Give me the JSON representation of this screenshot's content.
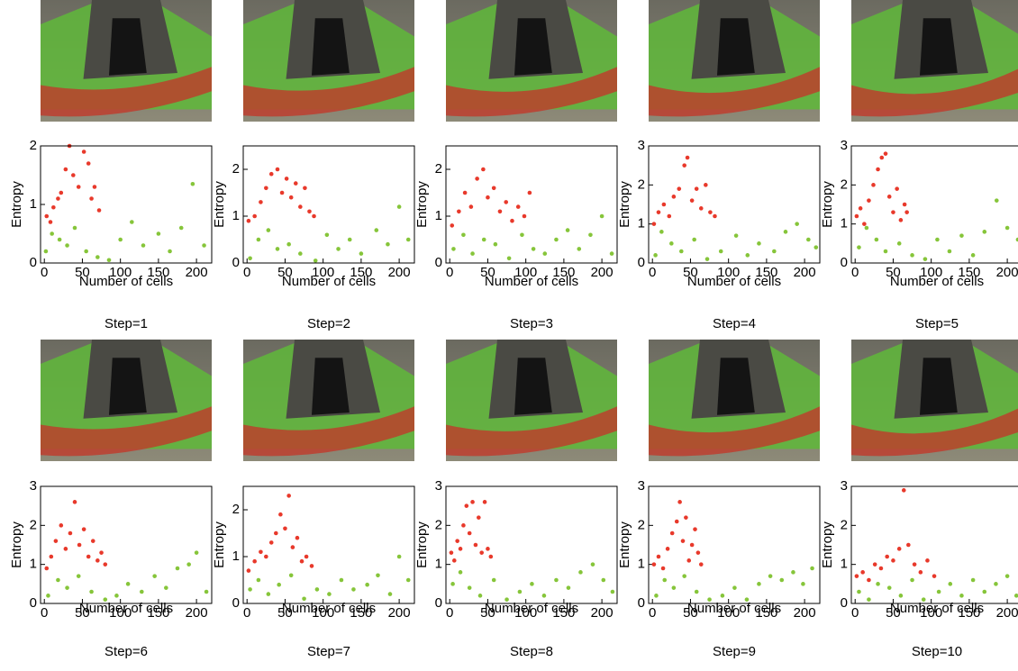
{
  "chart_data": [
    {
      "type": "scatter",
      "caption": "Step=1",
      "xlabel": "Number of cells",
      "ylabel": "Entropy",
      "xlim": [
        -5,
        220
      ],
      "xticks": [
        0,
        50,
        100,
        150,
        200
      ],
      "ylim": [
        0,
        2
      ],
      "yticks": [
        0,
        1,
        2
      ],
      "series": [
        {
          "color": "#e8392b",
          "x": [
            3,
            8,
            12,
            18,
            22,
            28,
            33,
            38,
            45,
            52,
            58,
            62,
            66,
            72
          ],
          "y": [
            0.8,
            0.7,
            0.95,
            1.1,
            1.2,
            1.6,
            2.0,
            1.5,
            1.3,
            1.9,
            1.7,
            1.1,
            1.3,
            0.9
          ]
        },
        {
          "color": "#86c53a",
          "x": [
            2,
            10,
            20,
            30,
            40,
            55,
            70,
            85,
            100,
            115,
            130,
            150,
            165,
            180,
            195,
            210
          ],
          "y": [
            0.2,
            0.5,
            0.4,
            0.3,
            0.6,
            0.2,
            0.1,
            0.05,
            0.4,
            0.7,
            0.3,
            0.5,
            0.2,
            0.6,
            1.35,
            0.3
          ]
        }
      ]
    },
    {
      "type": "scatter",
      "caption": "Step=2",
      "xlabel": "Number of cells",
      "ylabel": "Entropy",
      "xlim": [
        -5,
        220
      ],
      "xticks": [
        0,
        50,
        100,
        150,
        200
      ],
      "ylim": [
        0,
        2.5
      ],
      "yticks": [
        0,
        1,
        2
      ],
      "series": [
        {
          "color": "#e8392b",
          "x": [
            2,
            10,
            18,
            25,
            32,
            40,
            46,
            52,
            58,
            64,
            70,
            76,
            82,
            88
          ],
          "y": [
            0.9,
            1.0,
            1.3,
            1.6,
            1.9,
            2.0,
            1.5,
            1.8,
            1.4,
            1.7,
            1.2,
            1.6,
            1.1,
            1.0
          ]
        },
        {
          "color": "#86c53a",
          "x": [
            4,
            15,
            28,
            40,
            55,
            70,
            90,
            105,
            120,
            135,
            150,
            170,
            185,
            200,
            212
          ],
          "y": [
            0.1,
            0.5,
            0.7,
            0.3,
            0.4,
            0.2,
            0.05,
            0.6,
            0.3,
            0.5,
            0.2,
            0.7,
            0.4,
            1.2,
            0.5
          ]
        }
      ]
    },
    {
      "type": "scatter",
      "caption": "Step=3",
      "xlabel": "Number of cells",
      "ylabel": "Entropy",
      "xlim": [
        -5,
        220
      ],
      "xticks": [
        0,
        50,
        100,
        150,
        200
      ],
      "ylim": [
        0,
        2.5
      ],
      "yticks": [
        0,
        1,
        2
      ],
      "series": [
        {
          "color": "#e8392b",
          "x": [
            3,
            12,
            20,
            28,
            36,
            44,
            50,
            58,
            66,
            74,
            82,
            90,
            98,
            105
          ],
          "y": [
            0.8,
            1.1,
            1.5,
            1.2,
            1.8,
            2.0,
            1.4,
            1.6,
            1.1,
            1.3,
            0.9,
            1.2,
            1.0,
            1.5
          ]
        },
        {
          "color": "#86c53a",
          "x": [
            5,
            18,
            30,
            45,
            60,
            78,
            95,
            110,
            125,
            140,
            155,
            170,
            185,
            200,
            213
          ],
          "y": [
            0.3,
            0.6,
            0.2,
            0.5,
            0.4,
            0.1,
            0.6,
            0.3,
            0.2,
            0.5,
            0.7,
            0.3,
            0.6,
            1.0,
            0.2
          ]
        }
      ]
    },
    {
      "type": "scatter",
      "caption": "Step=4",
      "xlabel": "Number of cells",
      "ylabel": "Entropy",
      "xlim": [
        -5,
        220
      ],
      "xticks": [
        0,
        50,
        100,
        150,
        200
      ],
      "ylim": [
        0,
        3
      ],
      "yticks": [
        0,
        1,
        2,
        3
      ],
      "series": [
        {
          "color": "#e8392b",
          "x": [
            2,
            8,
            15,
            22,
            28,
            35,
            42,
            46,
            52,
            58,
            64,
            70,
            76,
            82
          ],
          "y": [
            1.0,
            1.3,
            1.5,
            1.2,
            1.7,
            1.9,
            2.5,
            2.7,
            1.6,
            1.9,
            1.4,
            2.0,
            1.3,
            1.2
          ]
        },
        {
          "color": "#86c53a",
          "x": [
            4,
            12,
            25,
            38,
            55,
            72,
            90,
            110,
            125,
            140,
            160,
            175,
            190,
            205,
            215
          ],
          "y": [
            0.2,
            0.8,
            0.5,
            0.3,
            0.6,
            0.1,
            0.3,
            0.7,
            0.2,
            0.5,
            0.3,
            0.8,
            1.0,
            0.6,
            0.4
          ]
        }
      ]
    },
    {
      "type": "scatter",
      "caption": "Step=5",
      "xlabel": "Number of cells",
      "ylabel": "Entropy",
      "xlim": [
        -5,
        220
      ],
      "xticks": [
        0,
        50,
        100,
        150,
        200
      ],
      "ylim": [
        0,
        3
      ],
      "yticks": [
        0,
        1,
        2,
        3
      ],
      "series": [
        {
          "color": "#e8392b",
          "x": [
            2,
            7,
            12,
            18,
            24,
            30,
            35,
            40,
            45,
            50,
            55,
            60,
            65,
            68
          ],
          "y": [
            1.2,
            1.4,
            1.0,
            1.6,
            2.0,
            2.4,
            2.7,
            2.8,
            1.7,
            1.3,
            1.9,
            1.1,
            1.5,
            1.3
          ]
        },
        {
          "color": "#86c53a",
          "x": [
            5,
            15,
            28,
            40,
            58,
            75,
            92,
            108,
            124,
            140,
            155,
            170,
            186,
            200,
            214
          ],
          "y": [
            0.4,
            0.9,
            0.6,
            0.3,
            0.5,
            0.2,
            0.1,
            0.6,
            0.3,
            0.7,
            0.2,
            0.8,
            1.6,
            0.9,
            0.6
          ]
        }
      ]
    },
    {
      "type": "scatter",
      "caption": "Step=6",
      "xlabel": "Number of cells",
      "ylabel": "Entropy",
      "xlim": [
        -5,
        220
      ],
      "xticks": [
        0,
        50,
        100,
        150,
        200
      ],
      "ylim": [
        0,
        3
      ],
      "yticks": [
        0,
        1,
        2,
        3
      ],
      "series": [
        {
          "color": "#e8392b",
          "x": [
            3,
            9,
            15,
            22,
            28,
            34,
            40,
            46,
            52,
            58,
            64,
            70,
            75,
            80
          ],
          "y": [
            0.9,
            1.2,
            1.6,
            2.0,
            1.4,
            1.8,
            2.6,
            1.5,
            1.9,
            1.2,
            1.6,
            1.1,
            1.3,
            1.0
          ]
        },
        {
          "color": "#86c53a",
          "x": [
            5,
            18,
            30,
            45,
            62,
            80,
            95,
            110,
            128,
            145,
            160,
            175,
            190,
            200,
            213
          ],
          "y": [
            0.2,
            0.6,
            0.4,
            0.7,
            0.3,
            0.1,
            0.2,
            0.5,
            0.3,
            0.7,
            0.4,
            0.9,
            1.0,
            1.3,
            0.3
          ]
        }
      ]
    },
    {
      "type": "scatter",
      "caption": "Step=7",
      "xlabel": "Number of cells",
      "ylabel": "Entropy",
      "xlim": [
        -5,
        220
      ],
      "xticks": [
        0,
        50,
        100,
        150,
        200
      ],
      "ylim": [
        0,
        2.5
      ],
      "yticks": [
        0,
        1,
        2
      ],
      "series": [
        {
          "color": "#e8392b",
          "x": [
            2,
            10,
            18,
            25,
            32,
            38,
            44,
            50,
            55,
            60,
            66,
            72,
            78,
            85
          ],
          "y": [
            0.7,
            0.9,
            1.1,
            1.0,
            1.3,
            1.5,
            1.9,
            1.6,
            2.3,
            1.2,
            1.4,
            0.9,
            1.0,
            0.8
          ]
        },
        {
          "color": "#86c53a",
          "x": [
            4,
            15,
            28,
            42,
            58,
            75,
            92,
            108,
            124,
            140,
            158,
            172,
            188,
            200,
            212
          ],
          "y": [
            0.3,
            0.5,
            0.2,
            0.4,
            0.6,
            0.1,
            0.3,
            0.2,
            0.5,
            0.3,
            0.4,
            0.6,
            0.2,
            1.0,
            0.5
          ]
        }
      ]
    },
    {
      "type": "scatter",
      "caption": "Step=8",
      "xlabel": "Number of cells",
      "ylabel": "Entropy",
      "xlim": [
        -5,
        220
      ],
      "xticks": [
        0,
        50,
        100,
        150,
        200
      ],
      "ylim": [
        0,
        3
      ],
      "yticks": [
        0,
        1,
        2,
        3
      ],
      "series": [
        {
          "color": "#e8392b",
          "x": [
            2,
            6,
            10,
            14,
            18,
            22,
            26,
            30,
            34,
            38,
            42,
            46,
            50,
            54
          ],
          "y": [
            1.3,
            1.1,
            1.6,
            1.4,
            2.0,
            2.5,
            1.8,
            2.6,
            1.5,
            2.2,
            1.3,
            2.6,
            1.4,
            1.2
          ]
        },
        {
          "color": "#86c53a",
          "x": [
            4,
            14,
            26,
            40,
            58,
            75,
            92,
            108,
            124,
            140,
            156,
            172,
            188,
            202,
            214
          ],
          "y": [
            0.5,
            0.8,
            0.4,
            0.2,
            0.6,
            0.1,
            0.3,
            0.5,
            0.2,
            0.6,
            0.4,
            0.8,
            1.0,
            0.6,
            0.3
          ]
        }
      ]
    },
    {
      "type": "scatter",
      "caption": "Step=9",
      "xlabel": "Number of cells",
      "ylabel": "Entropy",
      "xlim": [
        -5,
        220
      ],
      "xticks": [
        0,
        50,
        100,
        150,
        200
      ],
      "ylim": [
        0,
        3
      ],
      "yticks": [
        0,
        1,
        2,
        3
      ],
      "series": [
        {
          "color": "#e8392b",
          "x": [
            2,
            8,
            14,
            20,
            26,
            32,
            36,
            40,
            44,
            48,
            52,
            56,
            60,
            64
          ],
          "y": [
            1.0,
            1.2,
            0.9,
            1.4,
            1.8,
            2.1,
            2.6,
            1.6,
            2.2,
            1.1,
            1.5,
            1.9,
            1.3,
            1.0
          ]
        },
        {
          "color": "#86c53a",
          "x": [
            5,
            16,
            28,
            42,
            58,
            75,
            92,
            108,
            124,
            140,
            155,
            170,
            185,
            198,
            210
          ],
          "y": [
            0.2,
            0.6,
            0.4,
            0.7,
            0.3,
            0.1,
            0.2,
            0.4,
            0.1,
            0.5,
            0.7,
            0.6,
            0.8,
            0.5,
            0.9
          ]
        }
      ]
    },
    {
      "type": "scatter",
      "caption": "Step=10",
      "xlabel": "Number of cells",
      "ylabel": "Entropy",
      "xlim": [
        -5,
        220
      ],
      "xticks": [
        0,
        50,
        100,
        150,
        200
      ],
      "ylim": [
        0,
        3
      ],
      "yticks": [
        0,
        1,
        2,
        3
      ],
      "series": [
        {
          "color": "#e8392b",
          "x": [
            2,
            10,
            18,
            26,
            34,
            42,
            50,
            58,
            64,
            70,
            78,
            86,
            95,
            104
          ],
          "y": [
            0.7,
            0.8,
            0.6,
            1.0,
            0.9,
            1.2,
            1.1,
            1.4,
            2.9,
            1.5,
            1.0,
            0.8,
            1.1,
            0.7
          ]
        },
        {
          "color": "#86c53a",
          "x": [
            5,
            18,
            30,
            45,
            60,
            75,
            90,
            110,
            125,
            140,
            155,
            170,
            185,
            200,
            212
          ],
          "y": [
            0.3,
            0.1,
            0.5,
            0.4,
            0.2,
            0.6,
            0.1,
            0.3,
            0.5,
            0.2,
            0.6,
            0.3,
            0.5,
            0.7,
            0.2
          ]
        }
      ]
    }
  ]
}
